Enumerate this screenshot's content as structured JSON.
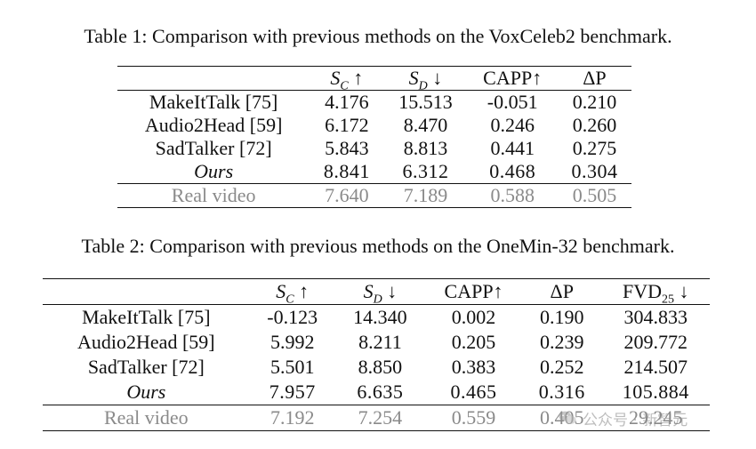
{
  "table1": {
    "caption": "Table 1: Comparison with previous methods on the VoxCeleb2 benchmark.",
    "headers": [
      "",
      "S",
      "C",
      "↑",
      "S",
      "D",
      "↓",
      "CAPP↑",
      "ΔP"
    ],
    "rows": [
      [
        "MakeItTalk [75]",
        "4.176",
        "15.513",
        "-0.051",
        "0.210"
      ],
      [
        "Audio2Head [59]",
        "6.172",
        "8.470",
        "0.246",
        "0.260"
      ],
      [
        "SadTalker [72]",
        "5.843",
        "8.813",
        "0.441",
        "0.275"
      ],
      [
        "Ours",
        "8.841",
        "6.312",
        "0.468",
        "0.304"
      ],
      [
        "Real video",
        "7.640",
        "7.189",
        "0.588",
        "0.505"
      ]
    ]
  },
  "table2": {
    "caption": "Table 2: Comparison with previous methods on the OneMin-32 benchmark.",
    "headers": [
      "",
      "S",
      "C",
      "↑",
      "S",
      "D",
      "↓",
      "CAPP↑",
      "ΔP",
      "FVD",
      "25",
      "↓"
    ],
    "rows": [
      [
        "MakeItTalk [75]",
        "-0.123",
        "14.340",
        "0.002",
        "0.190",
        "304.833"
      ],
      [
        "Audio2Head [59]",
        "5.992",
        "8.211",
        "0.205",
        "0.239",
        "209.772"
      ],
      [
        "SadTalker [72]",
        "5.501",
        "8.850",
        "0.383",
        "0.252",
        "214.507"
      ],
      [
        "Ours",
        "7.957",
        "6.635",
        "0.465",
        "0.316",
        "105.884"
      ],
      [
        "Real video",
        "7.192",
        "7.254",
        "0.559",
        "0.405",
        "29.245"
      ]
    ]
  },
  "watermark": {
    "text": "公众号 · 新智元",
    "icon": "wechat-icon"
  }
}
